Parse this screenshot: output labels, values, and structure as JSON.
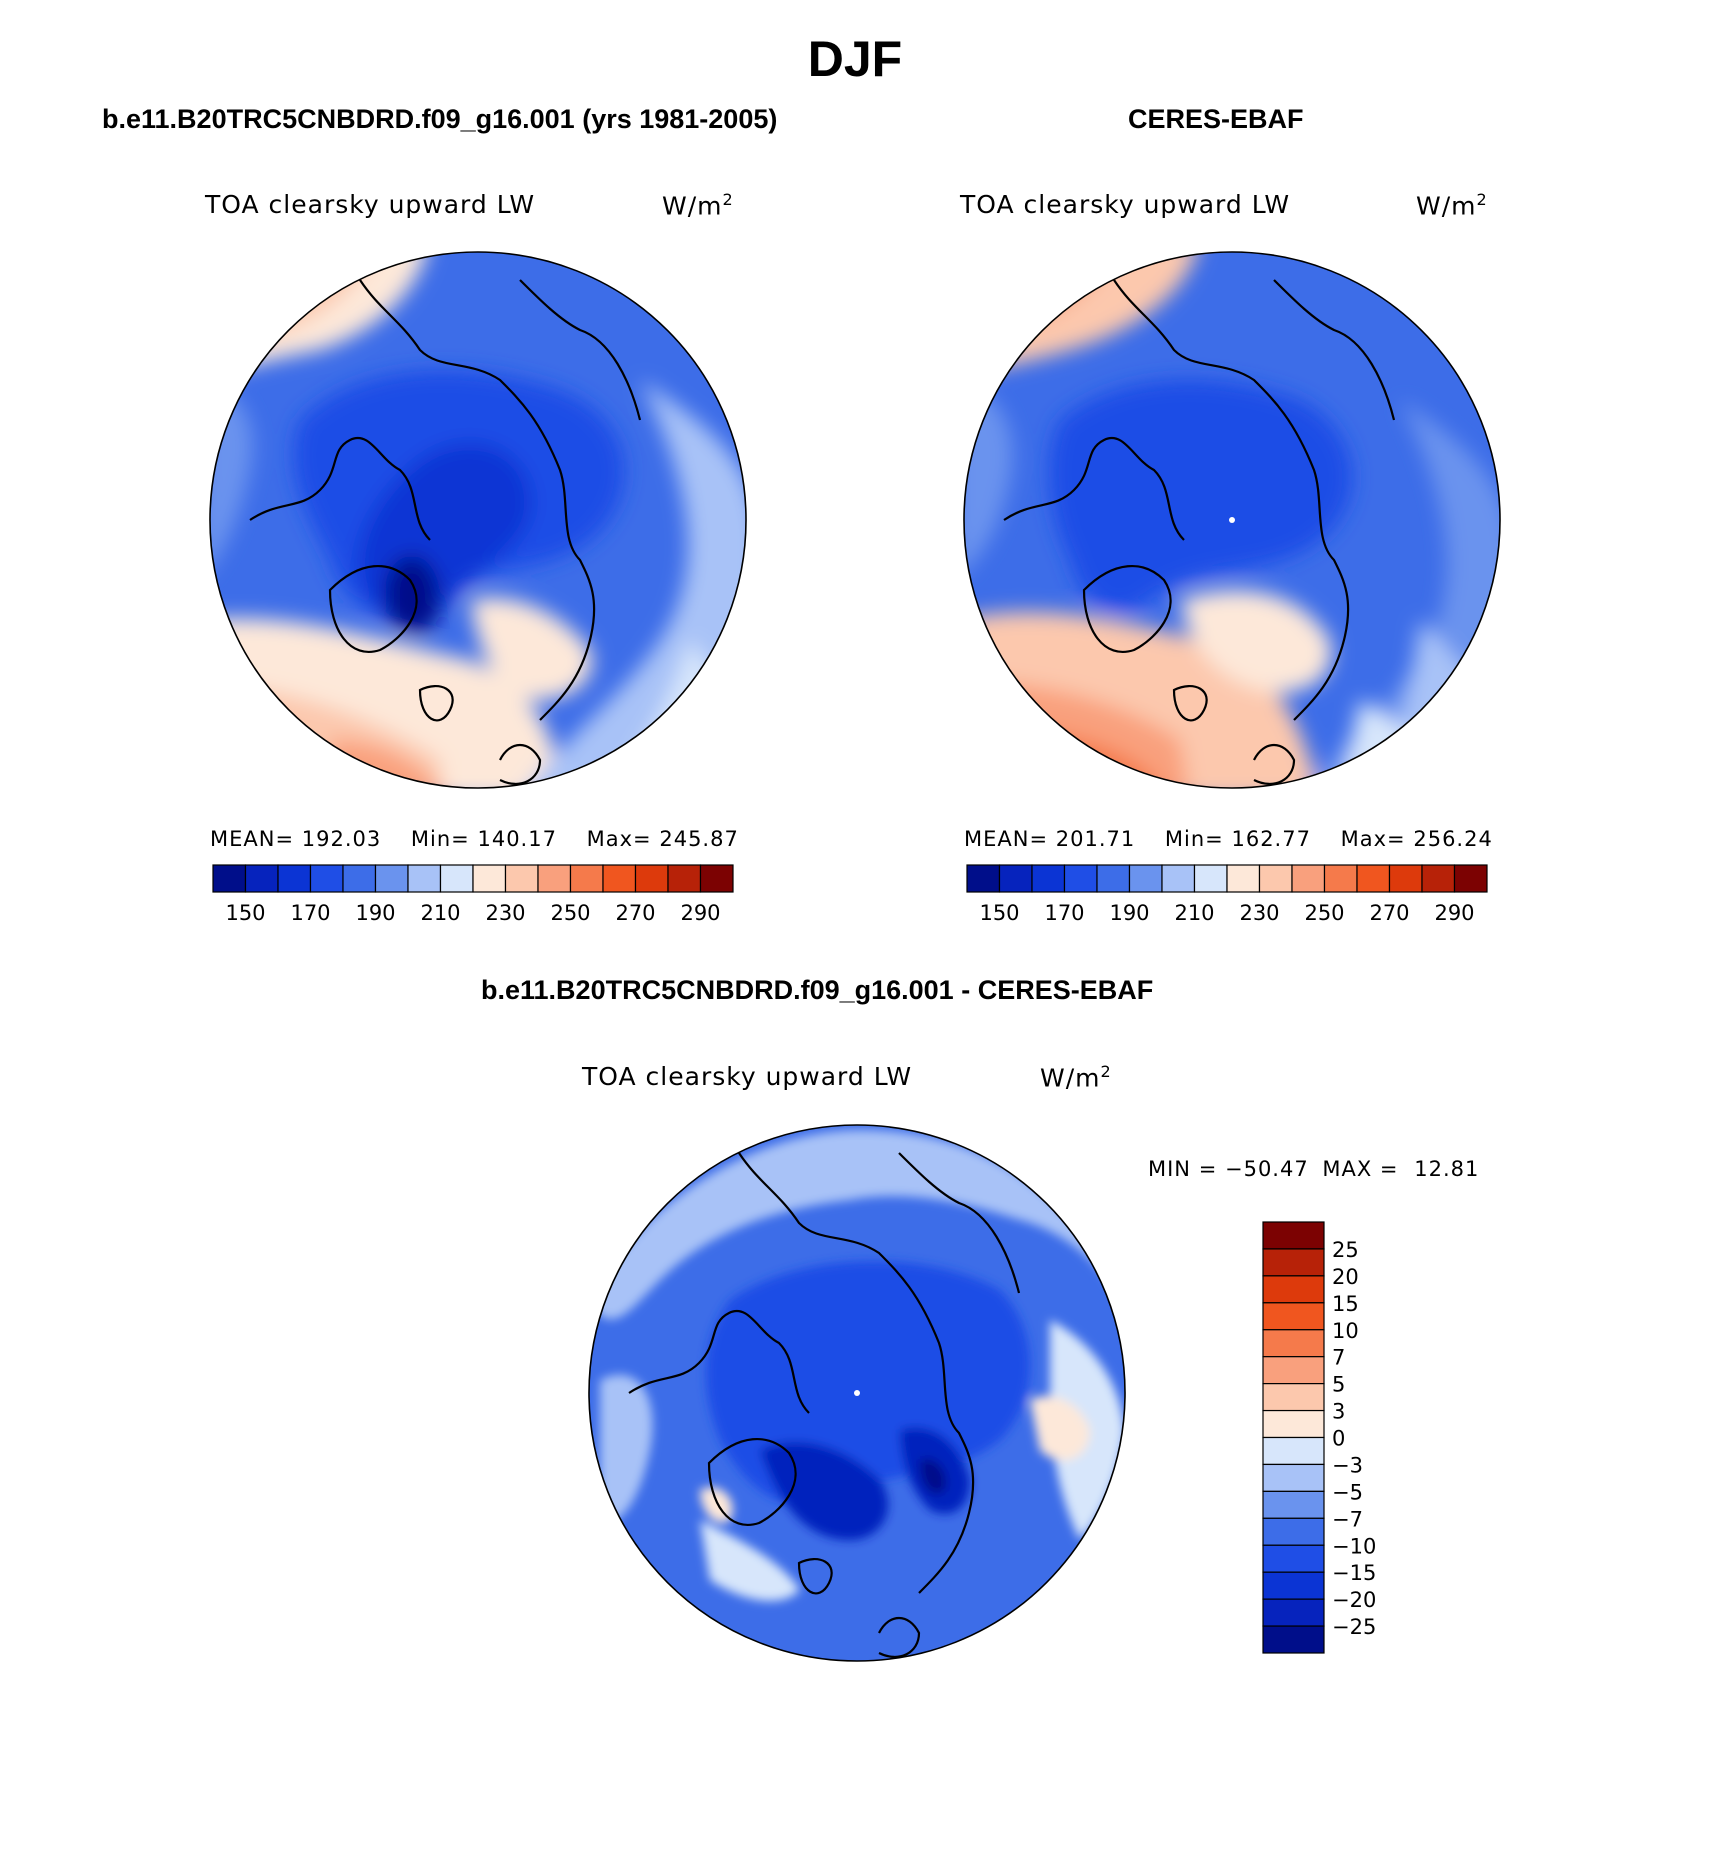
{
  "figure": {
    "title": "DJF"
  },
  "panels": {
    "model": {
      "title": "b.e11.B20TRC5CNBDRD.f09_g16.001 (yrs 1981-2005)",
      "variable": "TOA clearsky upward LW",
      "units_base": "W/m",
      "units_exp": "2",
      "mean_label": "MEAN=",
      "mean": "192.03",
      "min_label": "Min=",
      "min": "140.17",
      "max_label": "Max=",
      "max": "245.87"
    },
    "obs": {
      "title": "CERES-EBAF",
      "variable": "TOA clearsky upward LW",
      "units_base": "W/m",
      "units_exp": "2",
      "mean_label": "MEAN=",
      "mean": "201.71",
      "min_label": "Min=",
      "min": "162.77",
      "max_label": "Max=",
      "max": "256.24"
    },
    "diff": {
      "title": "b.e11.B20TRC5CNBDRD.f09_g16.001 - CERES-EBAF",
      "variable": "TOA clearsky upward LW",
      "units_base": "W/m",
      "units_exp": "2",
      "min_label": "MIN =",
      "min": "−50.47",
      "max_label": "MAX =",
      "max": "12.81"
    }
  },
  "chart_data": [
    {
      "type": "heatmap",
      "projection": "north polar stereographic",
      "title": "b.e11.B20TRC5CNBDRD.f09_g16.001 (yrs 1981-2005)",
      "variable": "TOA clearsky upward LW",
      "units": "W/m^2",
      "mean": 192.03,
      "min": 140.17,
      "max": 245.87,
      "colorbar": {
        "orientation": "horizontal",
        "boundaries": [
          150,
          160,
          170,
          180,
          190,
          200,
          210,
          220,
          230,
          240,
          250,
          260,
          270,
          280,
          290
        ],
        "tick_labels": [
          "150",
          "170",
          "190",
          "210",
          "230",
          "250",
          "270",
          "290"
        ],
        "colors": [
          "#000e8a",
          "#0623bd",
          "#0b34d4",
          "#1f4ee6",
          "#3d6de8",
          "#6a93ee",
          "#a8c2f7",
          "#d7e6fb",
          "#fde8d9",
          "#fcc8ad",
          "#f9a07d",
          "#f57a4b",
          "#f0561f",
          "#dd3a0c",
          "#b72208",
          "#7c0202"
        ]
      }
    },
    {
      "type": "heatmap",
      "projection": "north polar stereographic",
      "title": "CERES-EBAF",
      "variable": "TOA clearsky upward LW",
      "units": "W/m^2",
      "mean": 201.71,
      "min": 162.77,
      "max": 256.24,
      "colorbar": {
        "orientation": "horizontal",
        "boundaries": [
          150,
          160,
          170,
          180,
          190,
          200,
          210,
          220,
          230,
          240,
          250,
          260,
          270,
          280,
          290
        ],
        "tick_labels": [
          "150",
          "170",
          "190",
          "210",
          "230",
          "250",
          "270",
          "290"
        ],
        "colors": [
          "#000e8a",
          "#0623bd",
          "#0b34d4",
          "#1f4ee6",
          "#3d6de8",
          "#6a93ee",
          "#a8c2f7",
          "#d7e6fb",
          "#fde8d9",
          "#fcc8ad",
          "#f9a07d",
          "#f57a4b",
          "#f0561f",
          "#dd3a0c",
          "#b72208",
          "#7c0202"
        ]
      }
    },
    {
      "type": "heatmap",
      "projection": "north polar stereographic",
      "title": "b.e11.B20TRC5CNBDRD.f09_g16.001 - CERES-EBAF",
      "variable": "TOA clearsky upward LW",
      "units": "W/m^2",
      "min": -50.47,
      "max": 12.81,
      "colorbar": {
        "orientation": "vertical",
        "boundaries": [
          25,
          20,
          15,
          10,
          7,
          5,
          3,
          0,
          -3,
          -5,
          -7,
          -10,
          -15,
          -20,
          -25
        ],
        "tick_labels": [
          "25",
          "20",
          "15",
          "10",
          "7",
          "5",
          "3",
          "0",
          "−3",
          "−5",
          "−7",
          "−10",
          "−15",
          "−20",
          "−25"
        ],
        "colors": [
          "#7c0202",
          "#b72208",
          "#dd3a0c",
          "#f0561f",
          "#f57a4b",
          "#f9a07d",
          "#fcc8ad",
          "#fde8d9",
          "#d7e6fb",
          "#a8c2f7",
          "#6a93ee",
          "#3d6de8",
          "#1f4ee6",
          "#0b34d4",
          "#0623bd",
          "#000e8a"
        ]
      }
    }
  ]
}
